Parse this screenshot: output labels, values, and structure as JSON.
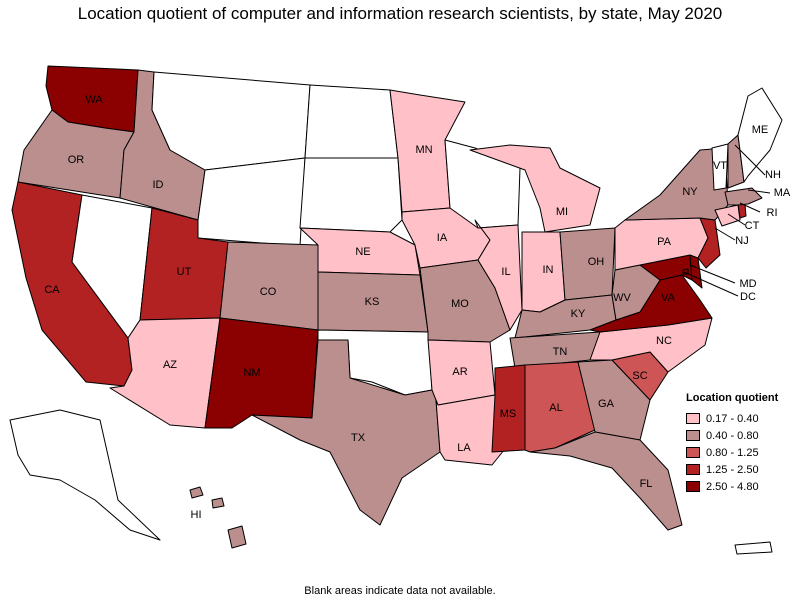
{
  "title": "Location quotient of computer and information research scientists, by state, May 2020",
  "footnote": "Blank areas indicate data not available.",
  "legend": {
    "title": "Location quotient",
    "items": [
      {
        "label": "0.17 - 0.40",
        "color": "#ffc0c8"
      },
      {
        "label": "0.40 - 0.80",
        "color": "#bc8f8f"
      },
      {
        "label": "0.80 - 1.25",
        "color": "#cd5555"
      },
      {
        "label": "1.25 - 2.50",
        "color": "#b22222"
      },
      {
        "label": "2.50 - 4.80",
        "color": "#8b0000"
      }
    ]
  },
  "states": {
    "WA": {
      "label": "WA",
      "class": 5
    },
    "OR": {
      "label": "OR",
      "class": 2
    },
    "CA": {
      "label": "CA",
      "class": 4
    },
    "NV": {
      "label": "",
      "class": 0
    },
    "ID": {
      "label": "ID",
      "class": 2
    },
    "MT": {
      "label": "",
      "class": 0
    },
    "WY": {
      "label": "",
      "class": 0
    },
    "UT": {
      "label": "UT",
      "class": 4
    },
    "AZ": {
      "label": "AZ",
      "class": 1
    },
    "CO": {
      "label": "CO",
      "class": 2
    },
    "NM": {
      "label": "NM",
      "class": 5
    },
    "ND": {
      "label": "",
      "class": 0
    },
    "SD": {
      "label": "",
      "class": 0
    },
    "NE": {
      "label": "NE",
      "class": 1
    },
    "KS": {
      "label": "KS",
      "class": 2
    },
    "OK": {
      "label": "",
      "class": 0
    },
    "TX": {
      "label": "TX",
      "class": 2
    },
    "MN": {
      "label": "MN",
      "class": 1
    },
    "IA": {
      "label": "IA",
      "class": 1
    },
    "MO": {
      "label": "MO",
      "class": 2
    },
    "AR": {
      "label": "AR",
      "class": 1
    },
    "LA": {
      "label": "LA",
      "class": 1
    },
    "WI": {
      "label": "",
      "class": 0
    },
    "IL": {
      "label": "IL",
      "class": 1
    },
    "MI": {
      "label": "MI",
      "class": 1
    },
    "IN": {
      "label": "IN",
      "class": 1
    },
    "OH": {
      "label": "OH",
      "class": 2
    },
    "KY": {
      "label": "KY",
      "class": 2
    },
    "TN": {
      "label": "TN",
      "class": 2
    },
    "MS": {
      "label": "MS",
      "class": 4
    },
    "AL": {
      "label": "AL",
      "class": 3
    },
    "GA": {
      "label": "GA",
      "class": 2
    },
    "FL": {
      "label": "FL",
      "class": 2
    },
    "SC": {
      "label": "SC",
      "class": 3
    },
    "NC": {
      "label": "NC",
      "class": 1
    },
    "VA": {
      "label": "VA",
      "class": 5
    },
    "WV": {
      "label": "WV",
      "class": 2
    },
    "MD": {
      "label": "MD",
      "class": 5
    },
    "DE": {
      "label": "",
      "class": 5
    },
    "DC": {
      "label": "DC",
      "class": 5
    },
    "PA": {
      "label": "PA",
      "class": 1
    },
    "NJ": {
      "label": "NJ",
      "class": 4
    },
    "NY": {
      "label": "NY",
      "class": 2
    },
    "CT": {
      "label": "CT",
      "class": 1
    },
    "RI": {
      "label": "RI",
      "class": 4
    },
    "MA": {
      "label": "MA",
      "class": 2
    },
    "VT": {
      "label": "VT",
      "class": 0
    },
    "NH": {
      "label": "NH",
      "class": 2
    },
    "ME": {
      "label": "ME",
      "class": 0
    },
    "AK": {
      "label": "",
      "class": 0
    },
    "HI": {
      "label": "HI",
      "class": 2
    },
    "PR": {
      "label": "",
      "class": 0
    }
  }
}
